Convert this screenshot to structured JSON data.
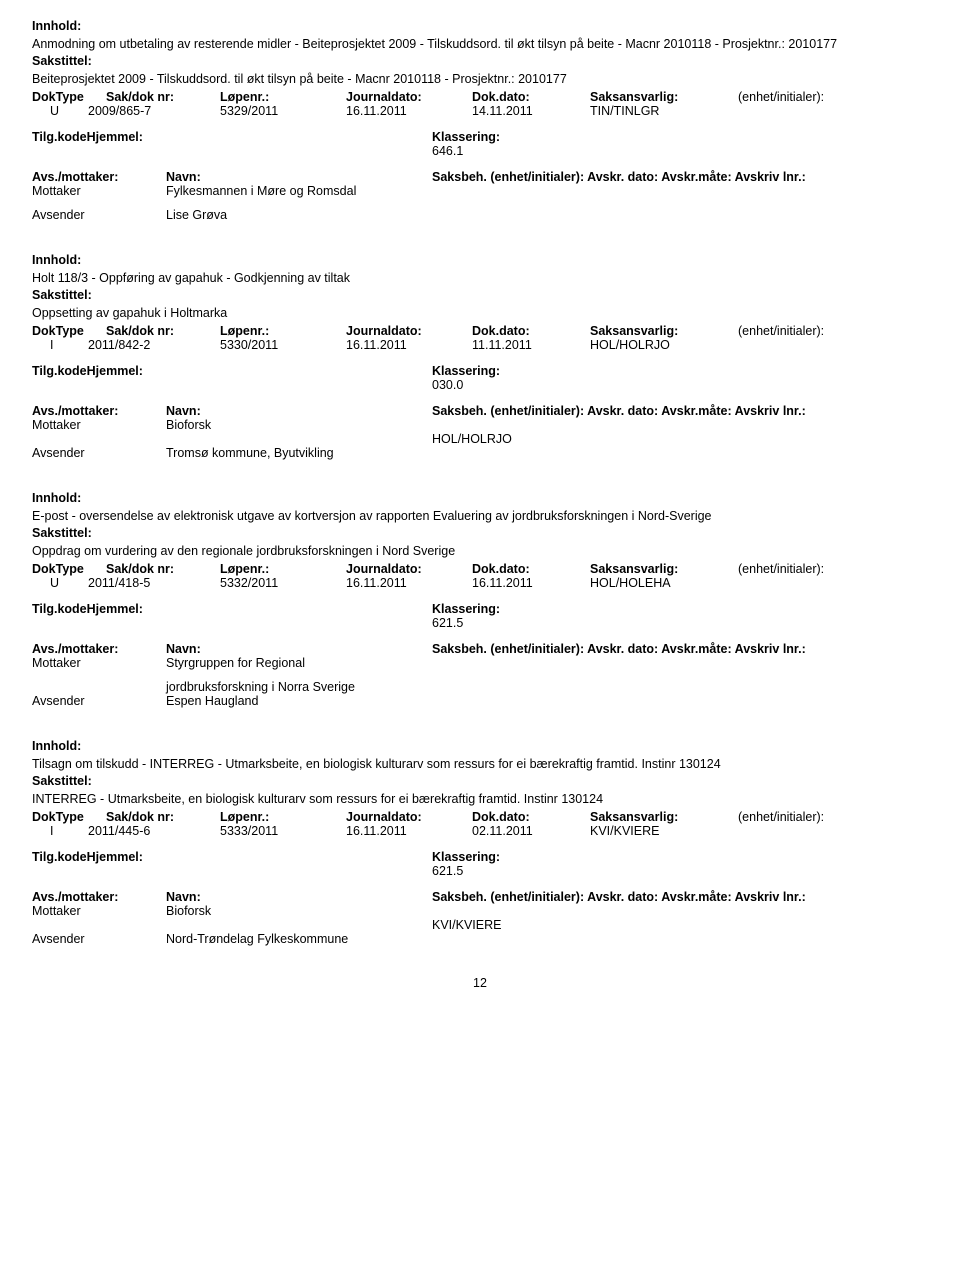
{
  "labels": {
    "innhold": "Innhold:",
    "sakstittel": "Sakstittel:",
    "tilg": "Tilg.kodeHjemmel:",
    "klassering": "Klassering:",
    "avsTitle": "Avs./mottaker:",
    "navn": "Navn:",
    "saksbeh": "Saksbeh. (enhet/initialer): Avskr. dato: Avskr.måte: Avskriv lnr.:",
    "mottaker": "Mottaker",
    "avsender": "Avsender",
    "h_doktype": "DokType",
    "h_saknr": "Sak/dok nr:",
    "h_lopenr": "Løpenr.:",
    "h_jdato": "Journaldato:",
    "h_ddato": "Dok.dato:",
    "h_ansv": "Saksansvarlig:",
    "h_enhet": "(enhet/initialer):"
  },
  "page_number": "12",
  "entries": [
    {
      "innhold": "Anmodning om utbetaling av resterende midler - Beiteprosjektet 2009 - Tilskuddsord. til økt tilsyn på beite - Macnr 2010118 - Prosjektnr.: 2010177",
      "sakstittel": "Beiteprosjektet 2009 - Tilskuddsord. til økt tilsyn på beite - Macnr 2010118 - Prosjektnr.: 2010177",
      "doktype": "U",
      "saknr": "2009/865-7",
      "lopenr": "5329/2011",
      "jdato": "16.11.2011",
      "ddato": "14.11.2011",
      "ansv": "TIN/TINLGR",
      "klass": "646.1",
      "parts": [
        {
          "role": "Mottaker",
          "name": "Fylkesmannen i Møre og Romsdal",
          "code": ""
        },
        {
          "role": "",
          "name": "",
          "code": ""
        },
        {
          "role": "Avsender",
          "name": "Lise Grøva",
          "code": ""
        }
      ]
    },
    {
      "innhold": "Holt 118/3 - Oppføring av gapahuk - Godkjenning av tiltak",
      "sakstittel": "Oppsetting av gapahuk i Holtmarka",
      "doktype": "I",
      "saknr": "2011/842-2",
      "lopenr": "5330/2011",
      "jdato": "16.11.2011",
      "ddato": "11.11.2011",
      "ansv": "HOL/HOLRJO",
      "klass": "030.0",
      "parts": [
        {
          "role": "Mottaker",
          "name": "Bioforsk",
          "code": ""
        },
        {
          "role": "",
          "name": "",
          "code": "HOL/HOLRJO"
        },
        {
          "role": "Avsender",
          "name": "Tromsø kommune, Byutvikling",
          "code": ""
        }
      ]
    },
    {
      "innhold": "E-post - oversendelse av elektronisk utgave av kortversjon av rapporten Evaluering av jordbruksforskningen i Nord-Sverige",
      "sakstittel": "Oppdrag om vurdering av den regionale jordbruksforskningen i Nord Sverige",
      "doktype": "U",
      "saknr": "2011/418-5",
      "lopenr": "5332/2011",
      "jdato": "16.11.2011",
      "ddato": "16.11.2011",
      "ansv": "HOL/HOLEHA",
      "klass": "621.5",
      "parts": [
        {
          "role": "Mottaker",
          "name": "Styrgruppen for Regional",
          "code": ""
        },
        {
          "role": "",
          "name": "",
          "code": ""
        },
        {
          "role": "",
          "name": "jordbruksforskning i Norra Sverige",
          "code": ""
        },
        {
          "role": "Avsender",
          "name": "Espen Haugland",
          "code": ""
        }
      ]
    },
    {
      "innhold": "Tilsagn om tilskudd - INTERREG - Utmarksbeite, en biologisk kulturarv som ressurs for ei bærekraftig framtid. Instinr 130124",
      "sakstittel": "INTERREG - Utmarksbeite, en biologisk kulturarv som ressurs for ei bærekraftig framtid. Instinr 130124",
      "doktype": "I",
      "saknr": "2011/445-6",
      "lopenr": "5333/2011",
      "jdato": "16.11.2011",
      "ddato": "02.11.2011",
      "ansv": "KVI/KVIERE",
      "klass": "621.5",
      "parts": [
        {
          "role": "Mottaker",
          "name": "Bioforsk",
          "code": ""
        },
        {
          "role": "",
          "name": "",
          "code": "KVI/KVIERE"
        },
        {
          "role": "Avsender",
          "name": "Nord-Trøndelag Fylkeskommune",
          "code": ""
        }
      ]
    }
  ]
}
